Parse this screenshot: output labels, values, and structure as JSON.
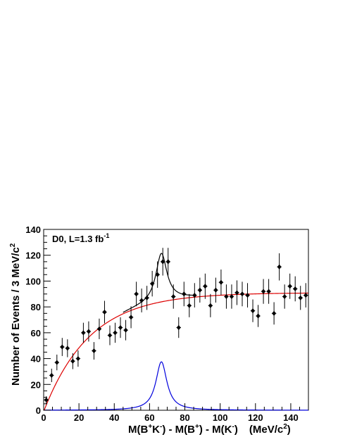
{
  "chart_data": {
    "type": "scatter",
    "annotation": {
      "main": "D0, L=1.3 fb",
      "sup": "-1"
    },
    "xlabel": {
      "pre": "M(B",
      "sup1": "+",
      "mid1": "K",
      "sup2": "-",
      "mid2": ") - M(B",
      "sup3": "+",
      "mid3": ") - M(K",
      "sup4": "-",
      "post": ")",
      "unit_pre": "(MeV/c",
      "unit_sup": "2",
      "unit_post": ")"
    },
    "ylabel": {
      "pre": "Number of Events / 3 MeV/c",
      "sup": "2"
    },
    "xlim": [
      0,
      150
    ],
    "ylim": [
      0,
      140
    ],
    "xticks": [
      0,
      20,
      40,
      60,
      80,
      100,
      120,
      140
    ],
    "yticks": [
      0,
      20,
      40,
      60,
      80,
      100,
      120,
      140
    ],
    "xtick_labels": [
      "0",
      "20",
      "40",
      "60",
      "80",
      "100",
      "120",
      "140"
    ],
    "ytick_labels": [
      "0",
      "20",
      "40",
      "60",
      "80",
      "100",
      "120",
      "140"
    ],
    "grid": false,
    "colors": {
      "data": "#000000",
      "total_fit": "#000000",
      "background_fit": "#dd0000",
      "signal_fit": "#0000dd"
    },
    "series": [
      {
        "kind": "points-with-errors",
        "x": [
          1.5,
          4.5,
          7.5,
          10.5,
          13.5,
          16.5,
          19.5,
          22.5,
          25.5,
          28.5,
          31.5,
          34.5,
          37.5,
          40.5,
          43.5,
          46.5,
          49.5,
          52.5,
          55.5,
          58.5,
          61.5,
          64.5,
          67.5,
          70.5,
          73.5,
          76.5,
          79.5,
          82.5,
          85.5,
          88.5,
          91.5,
          94.5,
          97.5,
          100.5,
          103.5,
          106.5,
          109.5,
          112.5,
          115.5,
          118.5,
          121.5,
          124.5,
          127.5,
          130.5,
          133.5,
          136.5,
          139.5,
          142.5,
          145.5,
          148.5
        ],
        "y": [
          8,
          27,
          37,
          49,
          48,
          38,
          40,
          60,
          61,
          46,
          63,
          76,
          58,
          60,
          64,
          62,
          72,
          90,
          85,
          87,
          98,
          105,
          115,
          115,
          88,
          64,
          90,
          81,
          89,
          93,
          96,
          81,
          93,
          99,
          88,
          88,
          91,
          90,
          89,
          77,
          73,
          92,
          92,
          75,
          111,
          88,
          96,
          94,
          87,
          89
        ]
      },
      {
        "kind": "curve",
        "role": "total-fit",
        "formula": "background + signal"
      },
      {
        "kind": "curve",
        "role": "background-fit",
        "model": "A*(1-exp(-(x-x0)/tau))",
        "params": {
          "A": 91,
          "x0": 0.3,
          "tau": 26
        }
      },
      {
        "kind": "curve",
        "role": "signal-fit",
        "model": "Lorentzian",
        "params": {
          "mean": 66.7,
          "gamma": 3.8,
          "peak": 37.5
        }
      }
    ]
  }
}
